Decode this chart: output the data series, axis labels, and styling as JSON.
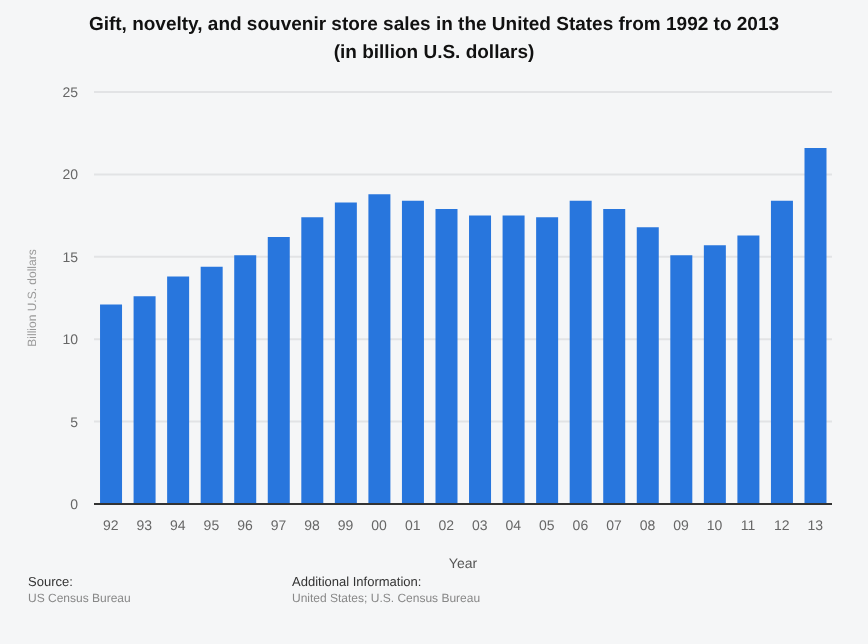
{
  "chart_data": {
    "type": "bar",
    "title": "Gift, novelty, and souvenir store sales in the United States from 1992 to 2013",
    "subtitle": "(in billion U.S. dollars)",
    "xlabel": "Year",
    "ylabel": "Billion U.S. dollars",
    "categories": [
      "92",
      "93",
      "94",
      "95",
      "96",
      "97",
      "98",
      "99",
      "00",
      "01",
      "02",
      "03",
      "04",
      "05",
      "06",
      "07",
      "08",
      "09",
      "10",
      "11",
      "12",
      "13"
    ],
    "values": [
      12.1,
      12.6,
      13.8,
      14.4,
      15.1,
      16.2,
      17.4,
      18.3,
      18.8,
      18.4,
      17.9,
      17.5,
      17.5,
      17.4,
      18.4,
      17.9,
      16.8,
      15.1,
      15.7,
      16.3,
      18.4,
      21.6
    ],
    "color": "#2876dd",
    "ylim": [
      0,
      25
    ],
    "yticks": [
      0,
      5,
      10,
      15,
      20,
      25
    ],
    "grid": "y",
    "legend": false,
    "annotations": [
      "Source:",
      "US Census Bureau",
      "Additional Information:",
      "United States; U.S. Census Bureau"
    ]
  }
}
